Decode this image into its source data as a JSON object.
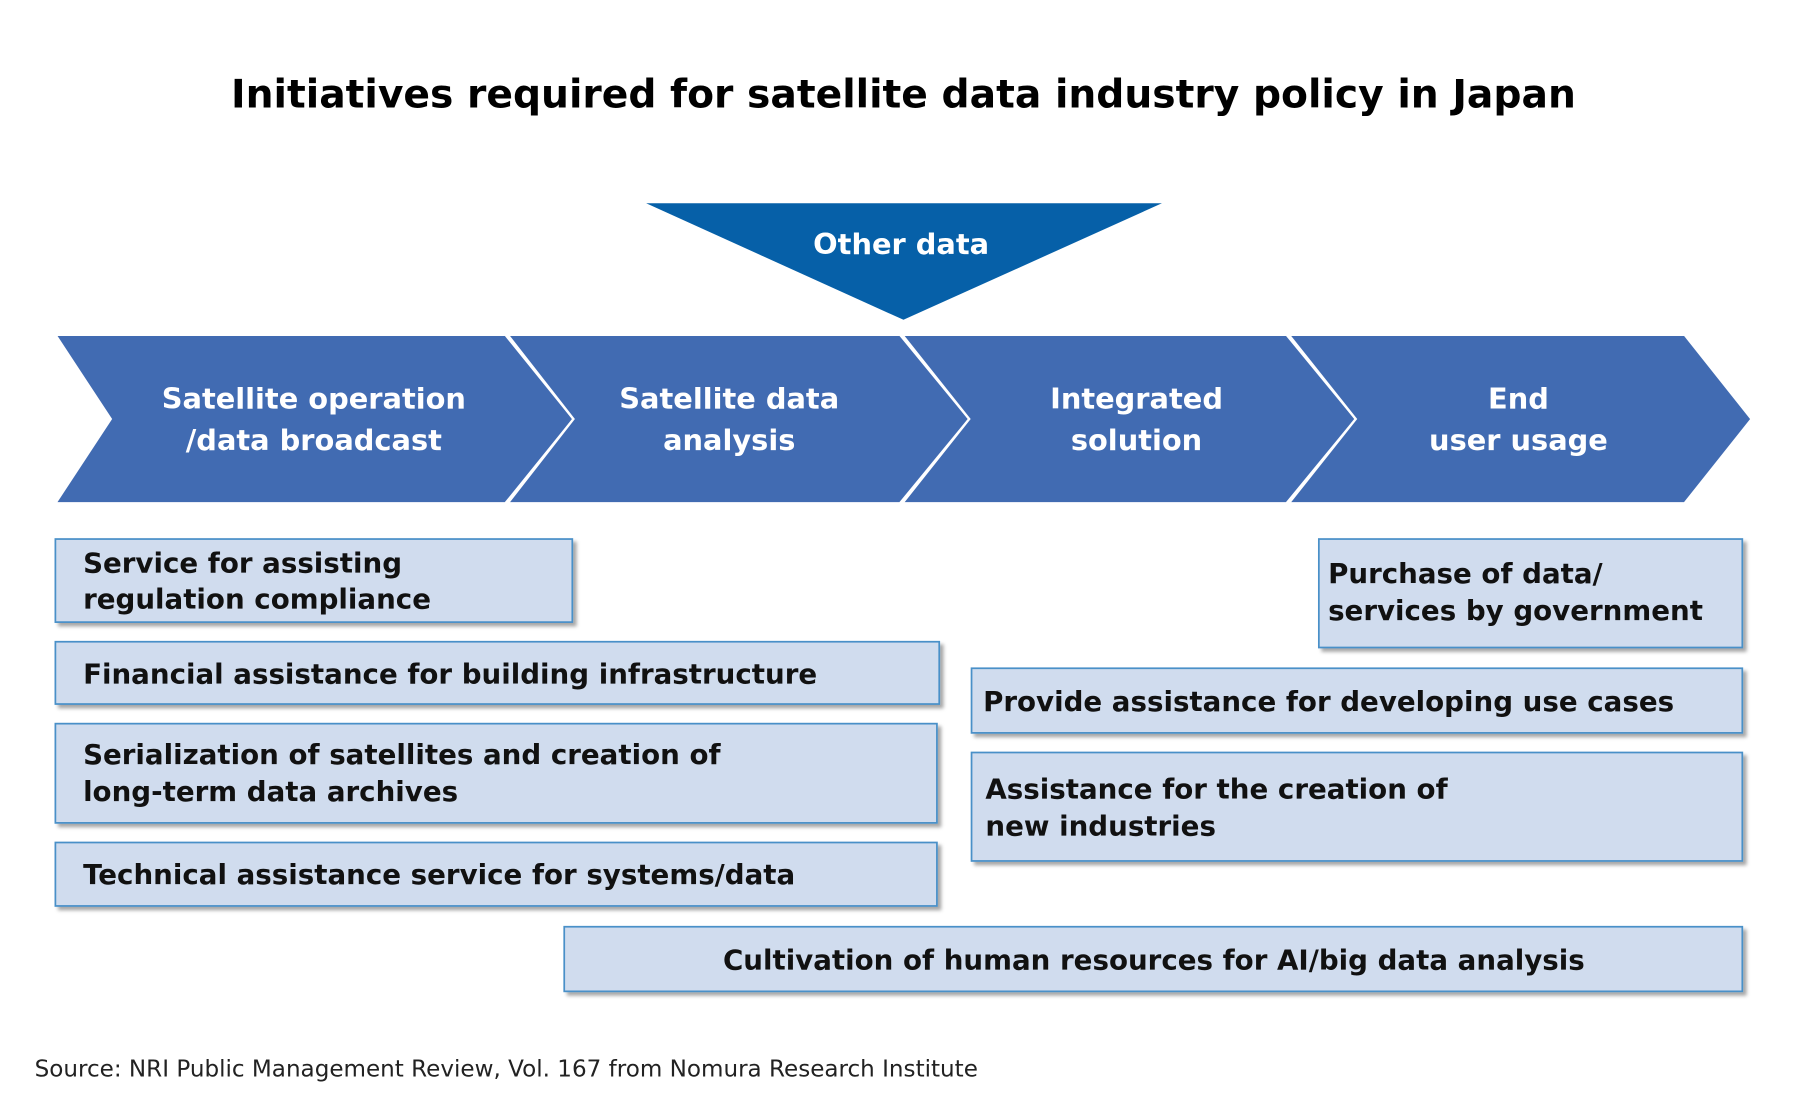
{
  "title": "Initiatives required for satellite data industry policy in Japan",
  "colors": {
    "chevron": "#416bb2",
    "triangle": "#0660a8",
    "box_fill": "#d0dcee",
    "box_border": "#4a90c8"
  },
  "other_data": "Other data",
  "stages": [
    {
      "line1": "Satellite operation",
      "line2": "/data broadcast"
    },
    {
      "line1": "Satellite data",
      "line2": "analysis"
    },
    {
      "line1": "Integrated",
      "line2": "solution"
    },
    {
      "line1": "End",
      "line2": "user usage"
    }
  ],
  "initiatives": [
    {
      "lines": [
        "Service for assisting",
        "regulation compliance"
      ]
    },
    {
      "lines": [
        "Financial assistance for building infrastructure"
      ]
    },
    {
      "lines": [
        "Serialization of satellites and creation of",
        "long-term data archives"
      ]
    },
    {
      "lines": [
        "Technical assistance service for systems/data"
      ]
    },
    {
      "lines": [
        "Purchase of data/",
        "services by government"
      ]
    },
    {
      "lines": [
        "Provide assistance for developing use cases"
      ]
    },
    {
      "lines": [
        "Assistance for the creation of",
        "new industries"
      ]
    },
    {
      "lines": [
        "Cultivation of human resources for AI/big data analysis"
      ]
    }
  ],
  "source": "Source: NRI Public Management Review, Vol. 167 from Nomura Research Institute"
}
